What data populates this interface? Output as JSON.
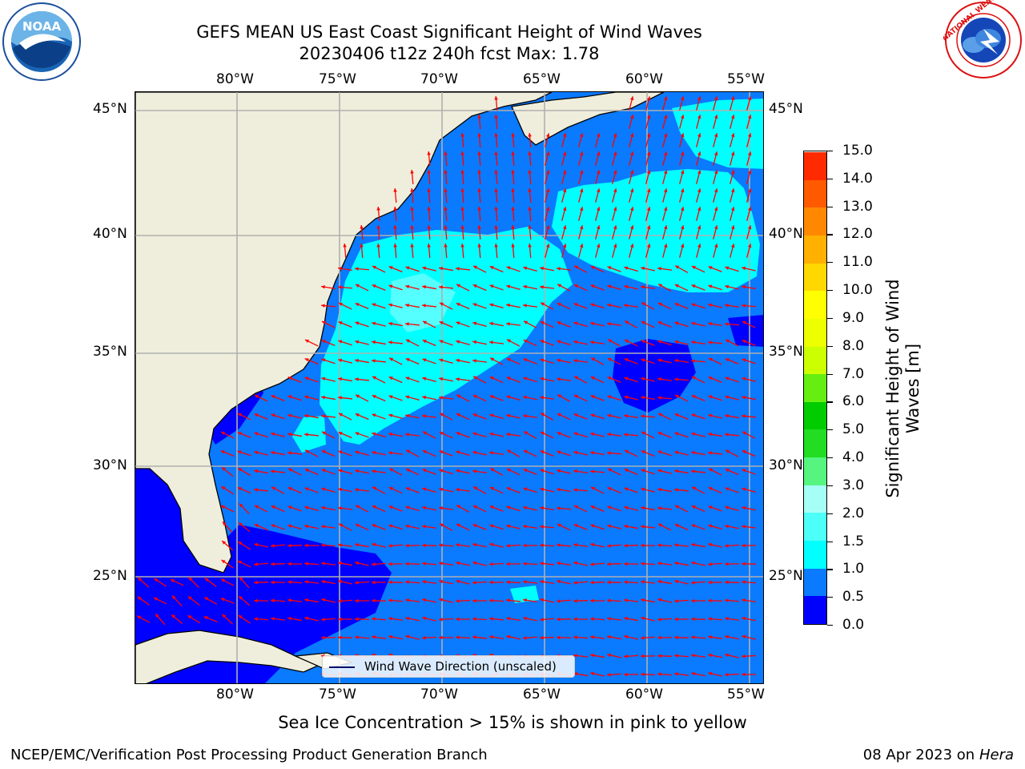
{
  "title": {
    "line1": "GEFS MEAN US East Coast Significant Height of Wind Waves",
    "line2": "20230406 t12z 240h fcst   Max: 1.78"
  },
  "logos": {
    "left": {
      "name": "noaa-logo",
      "text": "NOAA"
    },
    "right": {
      "name": "nws-logo",
      "text": "NATIONAL WEATHER SERVICE"
    }
  },
  "map": {
    "lon_labels": [
      "80°W",
      "75°W",
      "70°W",
      "65°W",
      "60°W",
      "55°W"
    ],
    "lat_labels": [
      "45°N",
      "40°N",
      "35°N",
      "30°N",
      "25°N"
    ],
    "land_color": "#efeedc",
    "water_colors": {
      "deep_blue": "#0000ff",
      "mid_blue": "#0a7aff",
      "cyan": "#00ffff",
      "light_cyan": "#55ffff",
      "ice_magenta": "#ff00ff"
    },
    "arrow_color": "#ff0000",
    "legend_label": "Wind Wave Direction (unscaled)"
  },
  "colorbar": {
    "label": "Significant Height of Wind Waves [m]",
    "ticks": [
      "0.0",
      "0.5",
      "1.0",
      "1.5",
      "2.0",
      "3.0",
      "4.0",
      "5.0",
      "6.0",
      "7.0",
      "8.0",
      "9.0",
      "10.0",
      "11.0",
      "12.0",
      "13.0",
      "14.0",
      "15.0"
    ],
    "colors": [
      "#0000ff",
      "#0a7aff",
      "#00ffff",
      "#4cfff8",
      "#a6fff6",
      "#55f580",
      "#22dd22",
      "#00cc00",
      "#66ee11",
      "#ccff00",
      "#eeff00",
      "#ffff00",
      "#ffd800",
      "#ffb000",
      "#ff8800",
      "#ff5a00",
      "#ff2a00",
      "#ff0000"
    ]
  },
  "caption": "Sea Ice Concentration > 15% is shown in pink to yellow",
  "footer": {
    "left": "NCEP/EMC/Verification Post Processing Product Generation Branch",
    "date": "08 Apr 2023 on ",
    "machine": "Hera"
  }
}
